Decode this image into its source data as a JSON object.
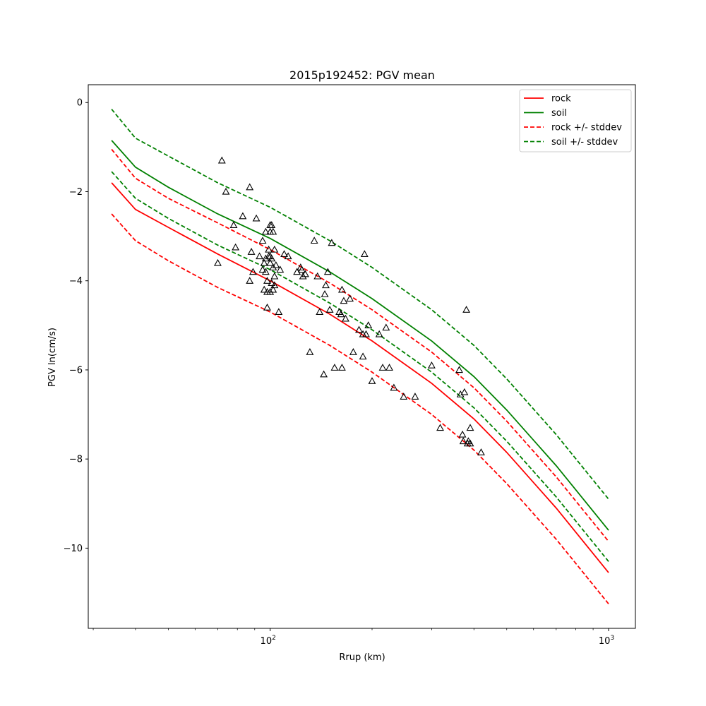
{
  "chart_data": {
    "type": "scatter",
    "title": "2015p192452: PGV mean",
    "xlabel": "Rrup (km)",
    "ylabel": "PGV ln(cm/s)",
    "x_scale": "log",
    "xlim": [
      29,
      1200
    ],
    "ylim": [
      -11.8,
      0.4
    ],
    "x_ticks": [
      100,
      1000
    ],
    "x_tick_labels": [
      {
        "base": "10",
        "exp": "2"
      },
      {
        "base": "10",
        "exp": "3"
      }
    ],
    "y_ticks": [
      0,
      -2,
      -4,
      -6,
      -8,
      -10
    ],
    "y_tick_labels": [
      "0",
      "−2",
      "−4",
      "−6",
      "−8",
      "−10"
    ],
    "grid": false,
    "legend_position": "top-right",
    "series": [
      {
        "name": "rock",
        "color": "#ff0000",
        "style": "solid",
        "x": [
          34,
          40,
          50,
          70,
          100,
          150,
          200,
          300,
          400,
          500,
          700,
          1000
        ],
        "y": [
          -1.8,
          -2.4,
          -2.8,
          -3.4,
          -4.0,
          -4.75,
          -5.35,
          -6.3,
          -7.1,
          -7.85,
          -9.1,
          -10.55
        ]
      },
      {
        "name": "soil",
        "color": "#008000",
        "style": "solid",
        "x": [
          34,
          40,
          50,
          70,
          100,
          150,
          200,
          300,
          400,
          500,
          700,
          1000
        ],
        "y": [
          -0.85,
          -1.45,
          -1.9,
          -2.5,
          -3.05,
          -3.8,
          -4.4,
          -5.35,
          -6.15,
          -6.9,
          -8.15,
          -9.6
        ]
      },
      {
        "name": "rock +/- stddev",
        "color": "#ff0000",
        "style": "dashed",
        "x": [
          34,
          40,
          50,
          70,
          100,
          150,
          200,
          300,
          400,
          500,
          700,
          1000
        ],
        "y": [
          -1.05,
          -1.7,
          -2.15,
          -2.7,
          -3.3,
          -4.05,
          -4.65,
          -5.6,
          -6.4,
          -7.15,
          -8.4,
          -9.85
        ]
      },
      {
        "name": "rock +/- stddev",
        "color": "#ff0000",
        "style": "dashed",
        "x": [
          34,
          40,
          50,
          70,
          100,
          150,
          200,
          300,
          400,
          500,
          700,
          1000
        ],
        "y": [
          -2.5,
          -3.1,
          -3.55,
          -4.15,
          -4.7,
          -5.45,
          -6.05,
          -7.0,
          -7.8,
          -8.55,
          -9.8,
          -11.25
        ]
      },
      {
        "name": "soil +/- stddev",
        "color": "#008000",
        "style": "dashed",
        "x": [
          34,
          40,
          50,
          70,
          100,
          150,
          200,
          300,
          400,
          500,
          700,
          1000
        ],
        "y": [
          -0.15,
          -0.8,
          -1.2,
          -1.8,
          -2.35,
          -3.1,
          -3.7,
          -4.65,
          -5.45,
          -6.2,
          -7.45,
          -8.9
        ]
      },
      {
        "name": "soil +/- stddev",
        "color": "#008000",
        "style": "dashed",
        "x": [
          34,
          40,
          50,
          70,
          100,
          150,
          200,
          300,
          400,
          500,
          700,
          1000
        ],
        "y": [
          -1.55,
          -2.15,
          -2.6,
          -3.2,
          -3.75,
          -4.5,
          -5.1,
          -6.05,
          -6.85,
          -7.6,
          -8.85,
          -10.3
        ]
      }
    ],
    "legend": [
      {
        "label": "rock",
        "color": "#ff0000",
        "style": "solid"
      },
      {
        "label": "soil",
        "color": "#008000",
        "style": "solid"
      },
      {
        "label": "rock +/- stddev",
        "color": "#ff0000",
        "style": "dashed"
      },
      {
        "label": "soil +/- stddev",
        "color": "#008000",
        "style": "dashed"
      }
    ],
    "points": {
      "marker": "triangle",
      "x": [
        72,
        74,
        70,
        87,
        83,
        91,
        78,
        79,
        88,
        89,
        87,
        93,
        95,
        95,
        96,
        97,
        97,
        97,
        98,
        98,
        99,
        99,
        100,
        100,
        100,
        100,
        101,
        101,
        101,
        102,
        102,
        102,
        103,
        103,
        103,
        104,
        96,
        98,
        100,
        106,
        107,
        110,
        113,
        120,
        123,
        124,
        125,
        127,
        135,
        138,
        140,
        145,
        146,
        148,
        150,
        152,
        160,
        163,
        165,
        167,
        172,
        183,
        188,
        190,
        192,
        200,
        215,
        232,
        248,
        163,
        176,
        188,
        195,
        210,
        220,
        225,
        268,
        300,
        318,
        362,
        365,
        370,
        372,
        375,
        380,
        383,
        385,
        390,
        390,
        420,
        131,
        144,
        155,
        162
      ],
      "y": [
        -1.3,
        -2.0,
        -3.6,
        -1.9,
        -2.55,
        -2.6,
        -2.75,
        -3.25,
        -3.35,
        -3.8,
        -4.0,
        -3.45,
        -3.1,
        -3.75,
        -3.6,
        -2.9,
        -3.5,
        -3.8,
        -4.0,
        -4.25,
        -3.45,
        -3.3,
        -2.75,
        -2.9,
        -3.6,
        -4.25,
        -2.75,
        -3.5,
        -4.05,
        -2.9,
        -3.7,
        -4.2,
        -3.3,
        -3.9,
        -4.1,
        -3.65,
        -4.2,
        -4.6,
        -3.45,
        -4.7,
        -3.75,
        -3.4,
        -3.45,
        -3.8,
        -3.7,
        -3.75,
        -3.9,
        -3.85,
        -3.1,
        -3.9,
        -4.7,
        -4.3,
        -4.1,
        -3.8,
        -4.65,
        -3.15,
        -4.7,
        -4.2,
        -4.45,
        -4.85,
        -4.4,
        -5.1,
        -5.7,
        -3.4,
        -5.2,
        -6.25,
        -5.95,
        -6.4,
        -6.6,
        -5.95,
        -5.6,
        -5.2,
        -5.0,
        -5.2,
        -5.05,
        -5.95,
        -6.6,
        -5.9,
        -7.3,
        -6.0,
        -6.55,
        -7.45,
        -7.6,
        -6.5,
        -4.65,
        -7.65,
        -7.6,
        -7.3,
        -7.65,
        -7.85,
        -5.6,
        -6.1,
        -5.95,
        -4.75
      ]
    }
  }
}
